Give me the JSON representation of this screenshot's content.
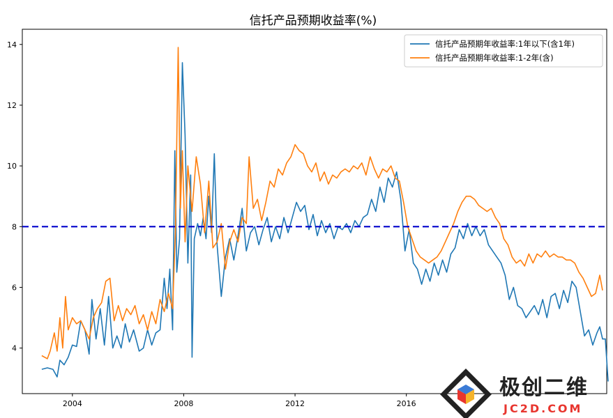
{
  "chart_data": {
    "type": "line",
    "title": "信托产品预期收益率(%)",
    "xlabel": "",
    "ylabel": "",
    "xlim": [
      2002.2,
      2023.2
    ],
    "ylim": [
      2.5,
      14.5
    ],
    "x_ticks": [
      2004,
      2008,
      2012,
      2016
    ],
    "x_tick_labels": [
      "2004",
      "2008",
      "2012",
      "2016"
    ],
    "y_ticks": [
      4,
      6,
      8,
      10,
      12,
      14
    ],
    "y_tick_labels": [
      "4",
      "6",
      "8",
      "10",
      "12",
      "14"
    ],
    "grid": false,
    "legend_position": "top-right",
    "reference_line": {
      "y": 8,
      "color": "#0000cc",
      "style": "dashed"
    },
    "series": [
      {
        "name": "信托产品预期年收益率:1年以下(含1年)",
        "color": "#1f77b4",
        "points": [
          [
            2002.9,
            3.3
          ],
          [
            2003.1,
            3.35
          ],
          [
            2003.3,
            3.3
          ],
          [
            2003.45,
            3.05
          ],
          [
            2003.55,
            3.6
          ],
          [
            2003.7,
            3.45
          ],
          [
            2003.85,
            3.7
          ],
          [
            2004.0,
            4.1
          ],
          [
            2004.15,
            4.05
          ],
          [
            2004.3,
            4.9
          ],
          [
            2004.45,
            4.6
          ],
          [
            2004.6,
            3.8
          ],
          [
            2004.7,
            5.6
          ],
          [
            2004.85,
            4.3
          ],
          [
            2005.0,
            5.3
          ],
          [
            2005.15,
            4.1
          ],
          [
            2005.3,
            5.7
          ],
          [
            2005.45,
            4.0
          ],
          [
            2005.6,
            4.4
          ],
          [
            2005.75,
            4.0
          ],
          [
            2005.9,
            4.8
          ],
          [
            2006.05,
            4.2
          ],
          [
            2006.2,
            4.6
          ],
          [
            2006.4,
            3.9
          ],
          [
            2006.55,
            4.0
          ],
          [
            2006.7,
            4.6
          ],
          [
            2006.85,
            4.1
          ],
          [
            2007.0,
            4.5
          ],
          [
            2007.15,
            4.6
          ],
          [
            2007.3,
            6.3
          ],
          [
            2007.4,
            5.3
          ],
          [
            2007.5,
            6.6
          ],
          [
            2007.6,
            4.6
          ],
          [
            2007.68,
            10.5
          ],
          [
            2007.75,
            6.5
          ],
          [
            2007.85,
            7.6
          ],
          [
            2007.95,
            13.4
          ],
          [
            2008.05,
            11.0
          ],
          [
            2008.15,
            6.8
          ],
          [
            2008.25,
            9.7
          ],
          [
            2008.3,
            3.7
          ],
          [
            2008.38,
            7.6
          ],
          [
            2008.5,
            8.1
          ],
          [
            2008.6,
            7.7
          ],
          [
            2008.7,
            8.3
          ],
          [
            2008.8,
            7.6
          ],
          [
            2008.9,
            9.0
          ],
          [
            2009.0,
            7.8
          ],
          [
            2009.1,
            10.4
          ],
          [
            2009.2,
            7.4
          ],
          [
            2009.35,
            5.7
          ],
          [
            2009.5,
            7.0
          ],
          [
            2009.65,
            7.6
          ],
          [
            2009.8,
            6.9
          ],
          [
            2009.95,
            7.7
          ],
          [
            2010.1,
            8.6
          ],
          [
            2010.25,
            7.2
          ],
          [
            2010.4,
            7.8
          ],
          [
            2010.55,
            8.0
          ],
          [
            2010.7,
            7.4
          ],
          [
            2010.85,
            7.9
          ],
          [
            2011.0,
            8.3
          ],
          [
            2011.15,
            7.5
          ],
          [
            2011.3,
            8.0
          ],
          [
            2011.45,
            7.6
          ],
          [
            2011.6,
            8.3
          ],
          [
            2011.75,
            7.8
          ],
          [
            2011.9,
            8.3
          ],
          [
            2012.05,
            8.8
          ],
          [
            2012.2,
            8.5
          ],
          [
            2012.35,
            8.7
          ],
          [
            2012.5,
            7.9
          ],
          [
            2012.65,
            8.4
          ],
          [
            2012.8,
            7.7
          ],
          [
            2012.95,
            8.2
          ],
          [
            2013.1,
            7.8
          ],
          [
            2013.25,
            8.1
          ],
          [
            2013.4,
            7.6
          ],
          [
            2013.55,
            8.0
          ],
          [
            2013.7,
            7.9
          ],
          [
            2013.85,
            8.1
          ],
          [
            2014.0,
            7.8
          ],
          [
            2014.15,
            8.2
          ],
          [
            2014.3,
            8.0
          ],
          [
            2014.45,
            8.3
          ],
          [
            2014.6,
            8.4
          ],
          [
            2014.75,
            8.9
          ],
          [
            2014.9,
            8.5
          ],
          [
            2015.05,
            9.3
          ],
          [
            2015.2,
            8.8
          ],
          [
            2015.35,
            9.6
          ],
          [
            2015.5,
            9.3
          ],
          [
            2015.65,
            9.8
          ],
          [
            2015.8,
            8.9
          ],
          [
            2015.95,
            7.2
          ],
          [
            2016.1,
            7.9
          ],
          [
            2016.25,
            6.8
          ],
          [
            2016.4,
            6.6
          ],
          [
            2016.55,
            6.1
          ],
          [
            2016.7,
            6.6
          ],
          [
            2016.85,
            6.2
          ],
          [
            2017.0,
            6.8
          ],
          [
            2017.15,
            6.4
          ],
          [
            2017.3,
            6.9
          ],
          [
            2017.45,
            6.5
          ],
          [
            2017.6,
            7.1
          ],
          [
            2017.75,
            7.3
          ],
          [
            2017.9,
            7.9
          ],
          [
            2018.05,
            7.6
          ],
          [
            2018.2,
            8.1
          ],
          [
            2018.35,
            7.7
          ],
          [
            2018.5,
            8.0
          ],
          [
            2018.65,
            7.7
          ],
          [
            2018.8,
            7.9
          ],
          [
            2018.95,
            7.4
          ],
          [
            2019.1,
            7.2
          ],
          [
            2019.25,
            7.0
          ],
          [
            2019.4,
            6.8
          ],
          [
            2019.55,
            6.4
          ],
          [
            2019.7,
            5.6
          ],
          [
            2019.85,
            6.0
          ],
          [
            2020.0,
            5.4
          ],
          [
            2020.15,
            5.3
          ],
          [
            2020.3,
            5.0
          ],
          [
            2020.45,
            5.2
          ],
          [
            2020.6,
            5.4
          ],
          [
            2020.75,
            5.1
          ],
          [
            2020.9,
            5.6
          ],
          [
            2021.05,
            5.0
          ],
          [
            2021.2,
            5.7
          ],
          [
            2021.35,
            5.8
          ],
          [
            2021.5,
            5.3
          ],
          [
            2021.65,
            5.9
          ],
          [
            2021.8,
            5.5
          ],
          [
            2021.95,
            6.2
          ],
          [
            2022.1,
            6.0
          ],
          [
            2022.25,
            5.2
          ],
          [
            2022.4,
            4.4
          ],
          [
            2022.55,
            4.6
          ],
          [
            2022.7,
            4.1
          ],
          [
            2022.85,
            4.5
          ],
          [
            2022.95,
            4.7
          ],
          [
            2023.05,
            4.3
          ],
          [
            2023.15,
            4.3
          ],
          [
            2023.25,
            2.9
          ]
        ]
      },
      {
        "name": "信托产品预期年收益率:1-2年(含)",
        "color": "#ff7f0e",
        "points": [
          [
            2002.9,
            3.75
          ],
          [
            2003.1,
            3.65
          ],
          [
            2003.2,
            3.9
          ],
          [
            2003.35,
            4.5
          ],
          [
            2003.45,
            3.9
          ],
          [
            2003.55,
            5.0
          ],
          [
            2003.65,
            4.0
          ],
          [
            2003.75,
            5.7
          ],
          [
            2003.85,
            4.6
          ],
          [
            2004.0,
            5.0
          ],
          [
            2004.15,
            4.8
          ],
          [
            2004.3,
            4.9
          ],
          [
            2004.45,
            4.6
          ],
          [
            2004.6,
            4.3
          ],
          [
            2004.75,
            5.0
          ],
          [
            2004.9,
            5.3
          ],
          [
            2005.05,
            5.5
          ],
          [
            2005.2,
            6.2
          ],
          [
            2005.35,
            6.3
          ],
          [
            2005.5,
            4.9
          ],
          [
            2005.65,
            5.4
          ],
          [
            2005.8,
            4.9
          ],
          [
            2005.95,
            5.3
          ],
          [
            2006.1,
            5.1
          ],
          [
            2006.25,
            5.4
          ],
          [
            2006.4,
            4.8
          ],
          [
            2006.55,
            5.1
          ],
          [
            2006.7,
            4.6
          ],
          [
            2006.85,
            5.2
          ],
          [
            2007.0,
            4.8
          ],
          [
            2007.15,
            5.6
          ],
          [
            2007.3,
            5.2
          ],
          [
            2007.45,
            5.8
          ],
          [
            2007.6,
            5.3
          ],
          [
            2007.7,
            7.8
          ],
          [
            2007.8,
            13.9
          ],
          [
            2007.88,
            8.6
          ],
          [
            2007.95,
            10.5
          ],
          [
            2008.05,
            7.5
          ],
          [
            2008.15,
            10.0
          ],
          [
            2008.3,
            8.5
          ],
          [
            2008.45,
            10.3
          ],
          [
            2008.6,
            9.4
          ],
          [
            2008.75,
            7.8
          ],
          [
            2008.9,
            9.5
          ],
          [
            2009.05,
            7.3
          ],
          [
            2009.2,
            7.5
          ],
          [
            2009.35,
            8.1
          ],
          [
            2009.5,
            6.6
          ],
          [
            2009.65,
            7.5
          ],
          [
            2009.8,
            7.9
          ],
          [
            2009.95,
            7.5
          ],
          [
            2010.1,
            8.3
          ],
          [
            2010.25,
            8.1
          ],
          [
            2010.35,
            10.3
          ],
          [
            2010.5,
            8.6
          ],
          [
            2010.65,
            8.9
          ],
          [
            2010.8,
            8.2
          ],
          [
            2010.95,
            8.8
          ],
          [
            2011.1,
            9.5
          ],
          [
            2011.25,
            9.3
          ],
          [
            2011.4,
            9.9
          ],
          [
            2011.55,
            9.7
          ],
          [
            2011.7,
            10.1
          ],
          [
            2011.85,
            10.3
          ],
          [
            2012.0,
            10.7
          ],
          [
            2012.15,
            10.5
          ],
          [
            2012.3,
            10.4
          ],
          [
            2012.45,
            10.0
          ],
          [
            2012.6,
            9.8
          ],
          [
            2012.75,
            10.1
          ],
          [
            2012.9,
            9.5
          ],
          [
            2013.05,
            9.8
          ],
          [
            2013.2,
            9.4
          ],
          [
            2013.35,
            9.7
          ],
          [
            2013.5,
            9.6
          ],
          [
            2013.65,
            9.8
          ],
          [
            2013.8,
            9.9
          ],
          [
            2013.95,
            9.8
          ],
          [
            2014.1,
            10.0
          ],
          [
            2014.25,
            9.9
          ],
          [
            2014.4,
            10.1
          ],
          [
            2014.55,
            9.7
          ],
          [
            2014.7,
            10.3
          ],
          [
            2014.85,
            9.9
          ],
          [
            2015.0,
            9.6
          ],
          [
            2015.15,
            9.9
          ],
          [
            2015.3,
            9.8
          ],
          [
            2015.45,
            10.0
          ],
          [
            2015.6,
            9.6
          ],
          [
            2015.75,
            9.5
          ],
          [
            2015.9,
            8.8
          ],
          [
            2016.05,
            8.0
          ],
          [
            2016.2,
            7.6
          ],
          [
            2016.35,
            7.2
          ],
          [
            2016.5,
            7.0
          ],
          [
            2016.65,
            6.9
          ],
          [
            2016.8,
            6.8
          ],
          [
            2016.95,
            6.9
          ],
          [
            2017.1,
            7.0
          ],
          [
            2017.25,
            7.2
          ],
          [
            2017.4,
            7.5
          ],
          [
            2017.55,
            7.8
          ],
          [
            2017.7,
            8.1
          ],
          [
            2017.85,
            8.5
          ],
          [
            2018.0,
            8.8
          ],
          [
            2018.15,
            9.0
          ],
          [
            2018.3,
            9.0
          ],
          [
            2018.45,
            8.9
          ],
          [
            2018.6,
            8.7
          ],
          [
            2018.75,
            8.6
          ],
          [
            2018.9,
            8.5
          ],
          [
            2019.05,
            8.6
          ],
          [
            2019.2,
            8.3
          ],
          [
            2019.35,
            8.1
          ],
          [
            2019.5,
            7.6
          ],
          [
            2019.65,
            7.4
          ],
          [
            2019.8,
            7.0
          ],
          [
            2019.95,
            6.8
          ],
          [
            2020.1,
            6.9
          ],
          [
            2020.25,
            6.7
          ],
          [
            2020.4,
            7.1
          ],
          [
            2020.55,
            6.8
          ],
          [
            2020.7,
            7.1
          ],
          [
            2020.85,
            7.0
          ],
          [
            2021.0,
            7.2
          ],
          [
            2021.15,
            7.0
          ],
          [
            2021.3,
            7.1
          ],
          [
            2021.45,
            7.0
          ],
          [
            2021.6,
            7.0
          ],
          [
            2021.75,
            6.9
          ],
          [
            2021.9,
            6.9
          ],
          [
            2022.05,
            6.8
          ],
          [
            2022.2,
            6.5
          ],
          [
            2022.35,
            6.3
          ],
          [
            2022.5,
            6.0
          ],
          [
            2022.65,
            5.7
          ],
          [
            2022.8,
            5.8
          ],
          [
            2022.95,
            6.4
          ],
          [
            2023.05,
            5.9
          ]
        ]
      }
    ]
  },
  "legend": {
    "items": [
      {
        "label": "信托产品预期年收益率:1年以下(含1年)",
        "color": "#1f77b4"
      },
      {
        "label": "信托产品预期年收益率:1-2年(含)",
        "color": "#ff7f0e"
      }
    ]
  },
  "watermark": {
    "brand": "极创二维",
    "url": "JC2D.COM"
  }
}
